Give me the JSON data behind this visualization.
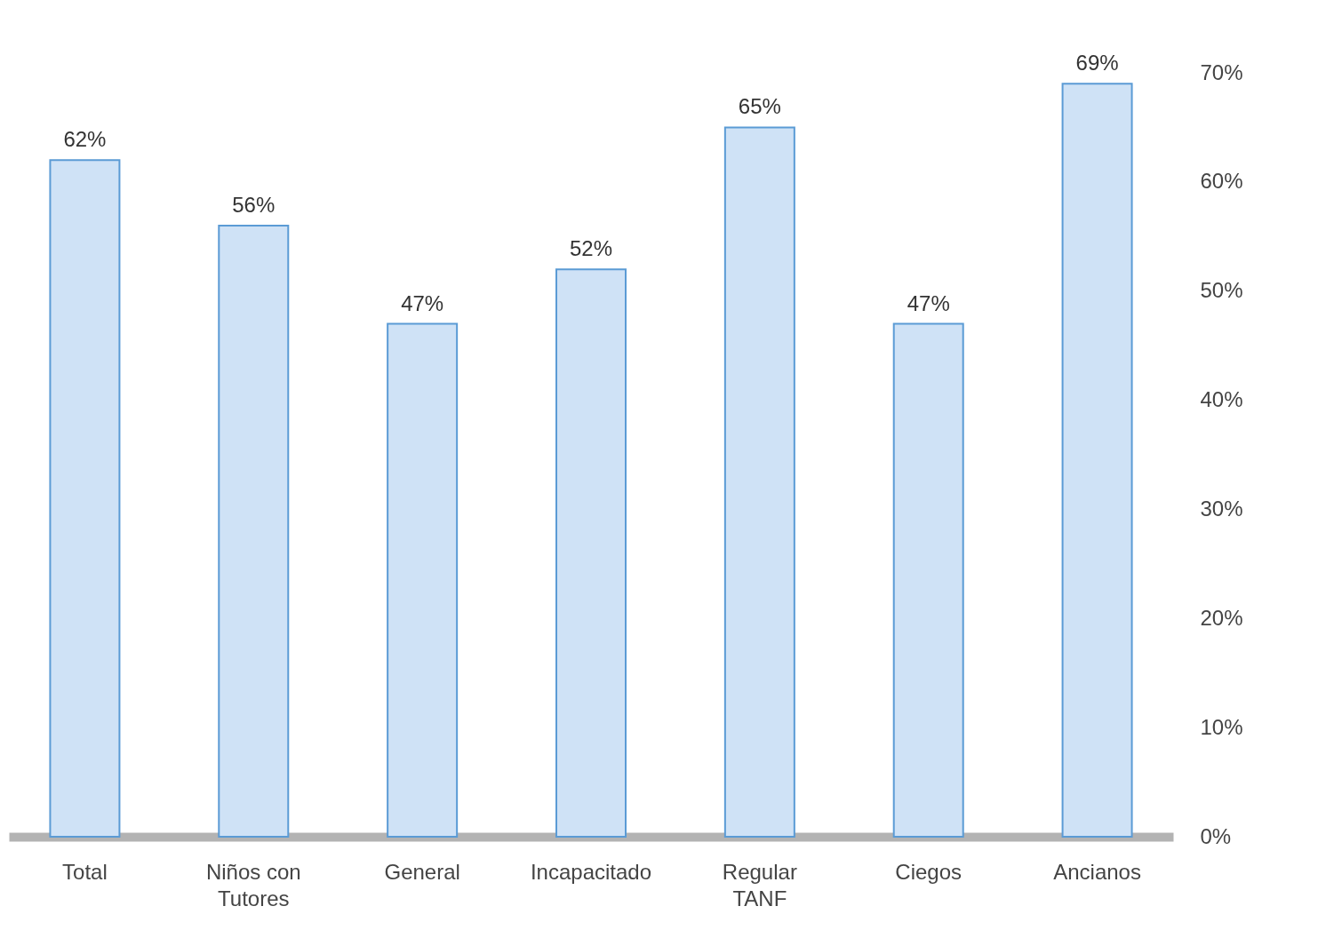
{
  "chart_data": {
    "type": "bar",
    "categories": [
      "Total",
      "Niños con Tutores",
      "General",
      "Incapacitado",
      "Regular TANF",
      "Ciegos",
      "Ancianos"
    ],
    "values": [
      62,
      56,
      47,
      52,
      65,
      47,
      69
    ],
    "value_labels": [
      "62%",
      "56%",
      "47%",
      "52%",
      "65%",
      "47%",
      "69%"
    ],
    "color": "#cfe2f6",
    "ylim": [
      0,
      70
    ],
    "yticks": [
      {
        "value": 0,
        "label": "0%"
      },
      {
        "value": 10,
        "label": "10%"
      },
      {
        "value": 20,
        "label": "20%"
      },
      {
        "value": 30,
        "label": "30%"
      },
      {
        "value": 40,
        "label": "40%"
      },
      {
        "value": 50,
        "label": "50%"
      },
      {
        "value": 60,
        "label": "60%"
      },
      {
        "value": 70,
        "label": "70%"
      }
    ],
    "grid": false
  }
}
